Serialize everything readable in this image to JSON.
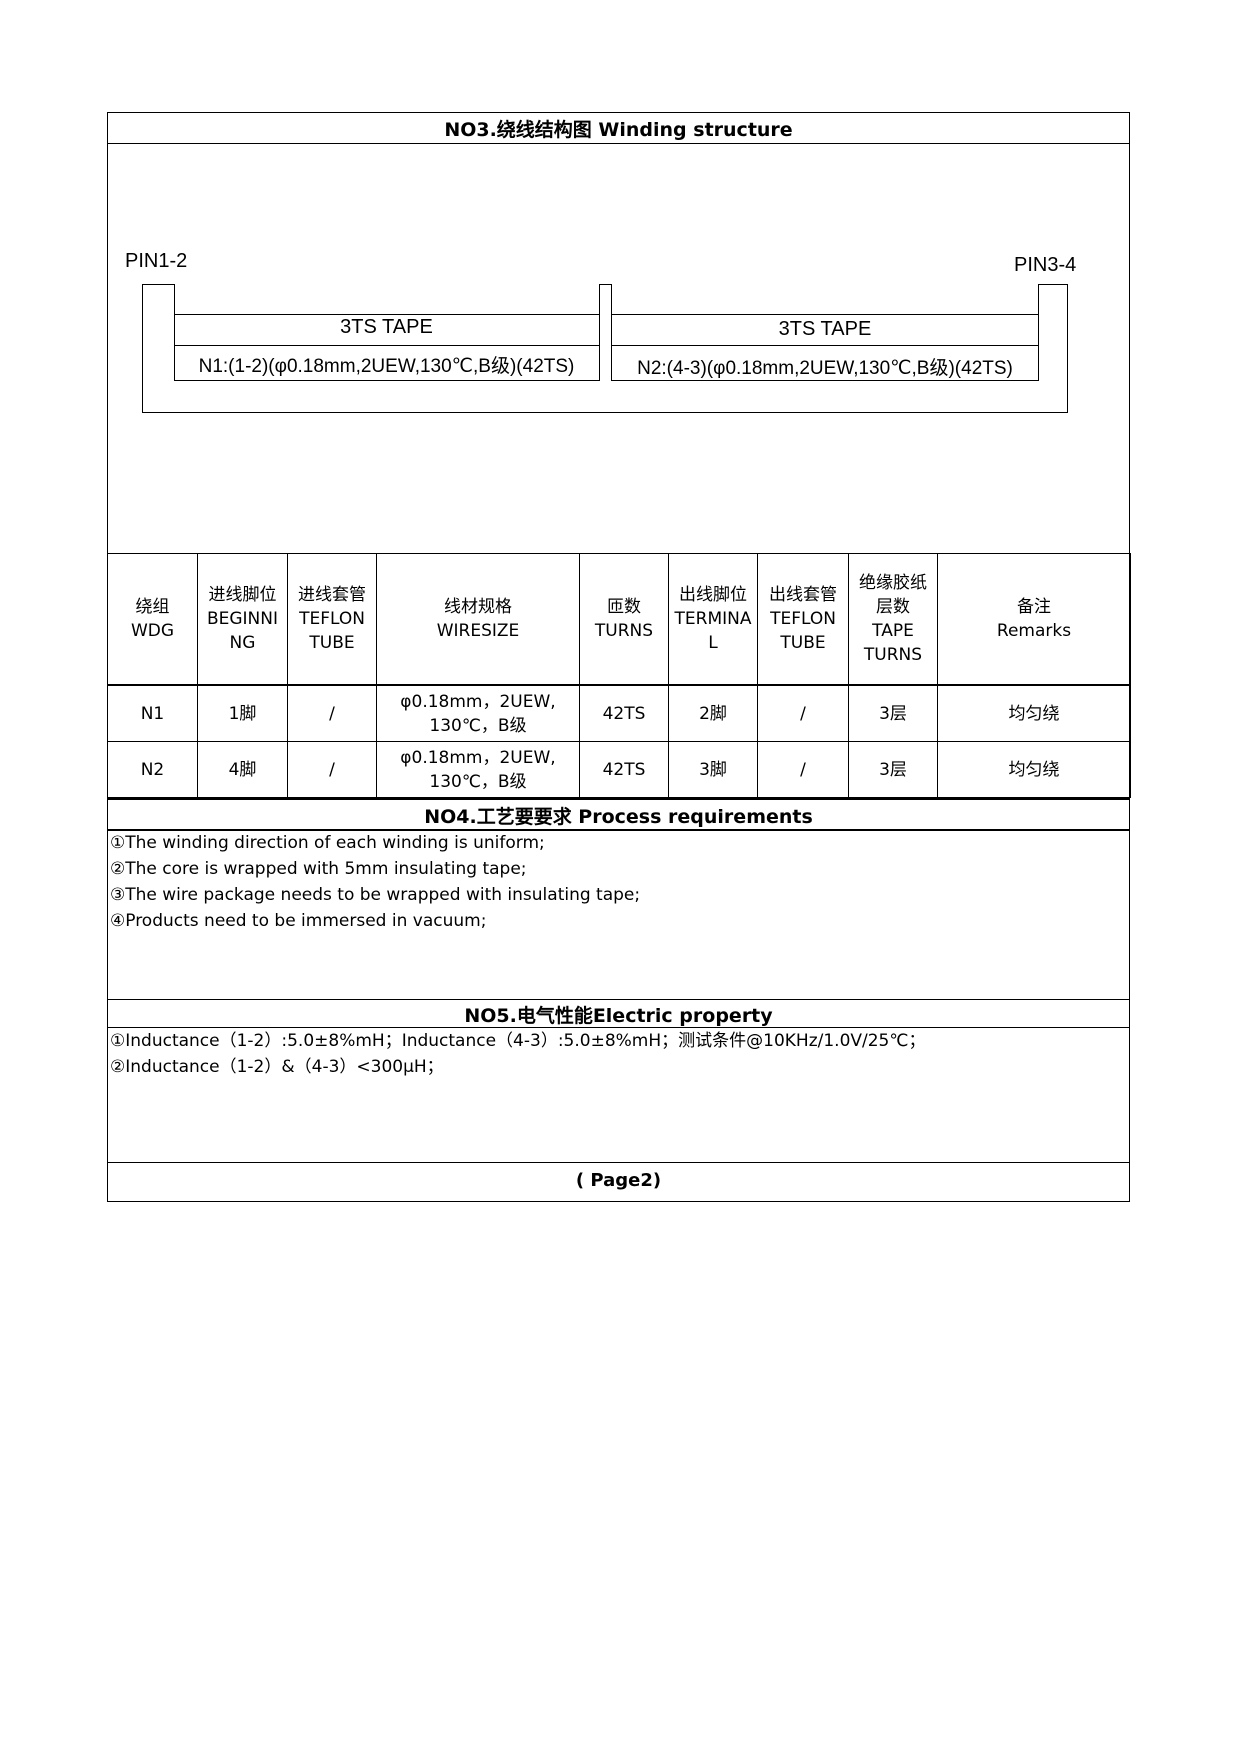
{
  "section3": {
    "title": "NO3.绕线结构图 Winding structure",
    "diagram": {
      "pin_left": "PIN1-2",
      "pin_right": "PIN3-4",
      "left_tape": "3TS TAPE",
      "right_tape": "3TS TAPE",
      "left_winding": "N1:(1-2)(φ0.18mm,2UEW,130℃,B级)(42TS)",
      "right_winding": "N2:(4-3)(φ0.18mm,2UEW,130℃,B级)(42TS)"
    }
  },
  "table": {
    "headers": [
      [
        "绕组",
        "WDG"
      ],
      [
        "进线脚位",
        "BEGINNI",
        "NG"
      ],
      [
        "进线套管",
        "TEFLON",
        "TUBE"
      ],
      [
        "线材规格",
        "WIRESIZE"
      ],
      [
        "匝数",
        "TURNS"
      ],
      [
        "出线脚位",
        "TERMINA",
        "L"
      ],
      [
        "出线套管",
        "TEFLON",
        "TUBE"
      ],
      [
        "绝缘胶纸",
        "层数",
        "TAPE",
        "TURNS"
      ],
      [
        "备注",
        "Remarks"
      ]
    ],
    "rows": [
      {
        "wdg": "N1",
        "begin": "1脚",
        "tube_in": "/",
        "wire1": "φ0.18mm，2UEW,",
        "wire2": "130℃，B级",
        "turns": "42TS",
        "term": "2脚",
        "tube_out": "/",
        "tape": "3层",
        "remarks": "均匀绕"
      },
      {
        "wdg": "N2",
        "begin": "4脚",
        "tube_in": "/",
        "wire1": "φ0.18mm，2UEW,",
        "wire2": "130℃，B级",
        "turns": "42TS",
        "term": "3脚",
        "tube_out": "/",
        "tape": "3层",
        "remarks": "均匀绕"
      }
    ]
  },
  "section4": {
    "title": "NO4.工艺要要求 Process requirements",
    "items": [
      "①The winding direction of each winding is uniform;",
      "②The core is wrapped with 5mm insulating tape;",
      "③The wire package needs to be wrapped with insulating tape;",
      "④Products need to be immersed in vacuum;"
    ]
  },
  "section5": {
    "title": "NO5.电气性能Electric property",
    "items": [
      "①Inductance（1-2）:5.0±8%mH；Inductance（4-3）:5.0±8%mH；测试条件@10KHz/1.0V/25℃；",
      "②Inductance（1-2）&（4-3）<300μH；"
    ]
  },
  "footer": {
    "page": "( Page2)"
  }
}
